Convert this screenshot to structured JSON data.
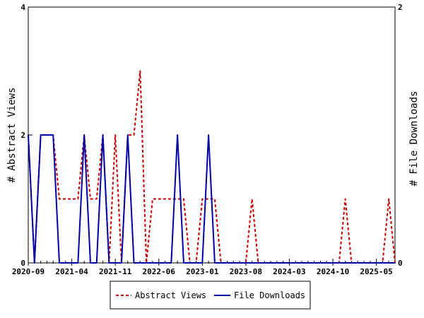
{
  "chart_data": {
    "type": "line",
    "ylabel_left": "# Abstract Views",
    "ylabel_right": "# File Downloads",
    "ylim_left": [
      0,
      4
    ],
    "ylim_right": [
      0,
      2
    ],
    "y_ticks_left": [
      "0",
      "2",
      "4"
    ],
    "y_ticks_right": [
      "0",
      "2"
    ],
    "x_ticks": [
      "2020-09",
      "2021-04",
      "2021-11",
      "2022-06",
      "2023-01",
      "2023-08",
      "2024-03",
      "2024-10",
      "2025-05"
    ],
    "x_start": "2020-09",
    "grid": false,
    "legend_position": "bottom",
    "series": [
      {
        "name": "Abstract Views",
        "color": "#cc0000",
        "style": "dashed",
        "axis": "left",
        "values": [
          2,
          0,
          2,
          2,
          2,
          1,
          1,
          1,
          1,
          2,
          1,
          1,
          2,
          0,
          2,
          0,
          2,
          2,
          3,
          0,
          1,
          1,
          1,
          1,
          1,
          1,
          0,
          0,
          1,
          1,
          1,
          0,
          0,
          0,
          0,
          0,
          1,
          0,
          0,
          0,
          0,
          0,
          0,
          0,
          0,
          0,
          0,
          0,
          0,
          0,
          0,
          1,
          0,
          0,
          0,
          0,
          0,
          0,
          1,
          0
        ]
      },
      {
        "name": "File Downloads",
        "color": "#0000aa",
        "style": "solid",
        "axis": "right",
        "values": [
          1,
          0,
          1,
          1,
          1,
          0,
          0,
          0,
          0,
          1,
          0,
          0,
          1,
          0,
          0,
          0,
          1,
          0,
          0,
          0,
          0,
          0,
          0,
          0,
          1,
          0,
          0,
          0,
          0,
          1,
          0,
          0,
          0,
          0,
          0,
          0,
          0,
          0,
          0,
          0,
          0,
          0,
          0,
          0,
          0,
          0,
          0,
          0,
          0,
          0,
          0,
          0,
          0,
          0,
          0,
          0,
          0,
          0,
          0,
          0
        ]
      }
    ]
  }
}
